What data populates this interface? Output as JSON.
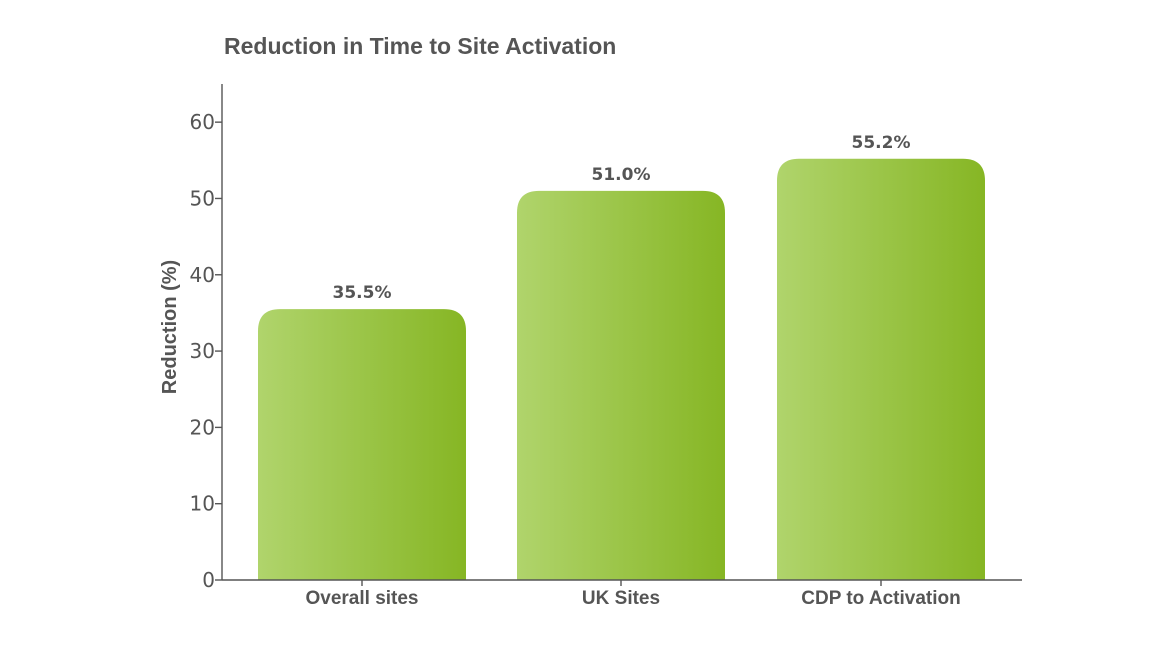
{
  "chart_data": {
    "type": "bar",
    "title": "Reduction in Time to Site Activation",
    "xlabel": "",
    "ylabel": "Reduction (%)",
    "categories": [
      "Overall sites",
      "UK Sites",
      "CDP to Activation"
    ],
    "values": [
      35.5,
      51.0,
      55.2
    ],
    "data_labels": [
      "35.5%",
      "51.0%",
      "55.2%"
    ],
    "ylim": [
      0,
      65
    ],
    "yticks": [
      0,
      10,
      20,
      30,
      40,
      50,
      60
    ],
    "grid": false,
    "legend": "none",
    "colors": {
      "bar_light": "#b0d46c",
      "bar_dark": "#86b624",
      "text": "#555555",
      "axis": "#555555"
    }
  }
}
